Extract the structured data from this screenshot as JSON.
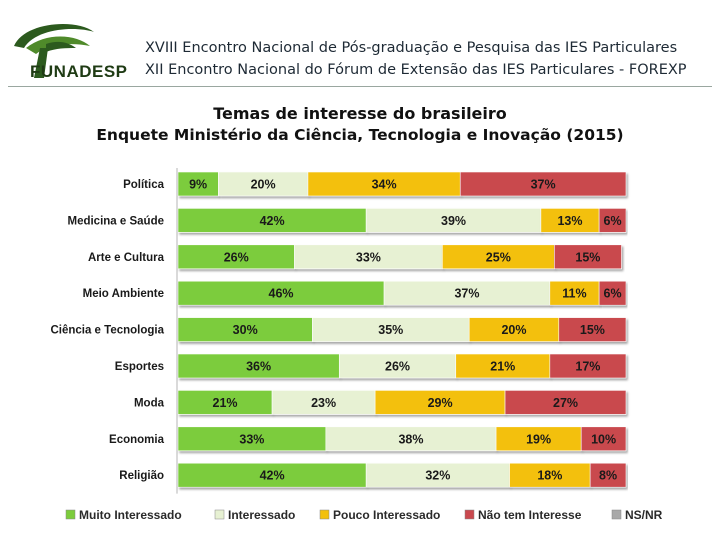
{
  "header": {
    "logo_text": "FUNADESP",
    "line1": "XVIII Encontro Nacional de Pós-graduação e Pesquisa das IES Particulares",
    "line2": "XII Encontro Nacional do Fórum de Extensão das IES Particulares - FOREXP"
  },
  "colors": {
    "muito": "#7ccc3c",
    "interessado": "#e7f1d3",
    "pouco": "#f3c00a",
    "nao": "#c9484e",
    "nsnr": "#a9a9a9"
  },
  "chart_data": {
    "type": "bar",
    "stacked": true,
    "orientation": "horizontal",
    "title": "Temas de interesse do brasileiro",
    "subtitle": "Enquete Ministério da Ciência, Tecnologia e Inovação (2015)",
    "categories": [
      "Política",
      "Medicina e Saúde",
      "Arte e Cultura",
      "Meio Ambiente",
      "Ciência e Tecnologia",
      "Esportes",
      "Moda",
      "Economia",
      "Religião"
    ],
    "series": [
      {
        "name": "Muito Interessado",
        "values": [
          9,
          42,
          26,
          46,
          30,
          36,
          21,
          33,
          42
        ]
      },
      {
        "name": "Interessado",
        "values": [
          20,
          39,
          33,
          37,
          35,
          26,
          23,
          38,
          32
        ]
      },
      {
        "name": "Pouco Interessado",
        "values": [
          34,
          13,
          25,
          11,
          20,
          21,
          29,
          19,
          18
        ]
      },
      {
        "name": "Não tem Interesse",
        "values": [
          37,
          6,
          15,
          6,
          15,
          17,
          27,
          10,
          8
        ]
      },
      {
        "name": "NS/NR",
        "values": [
          0,
          0,
          0,
          0,
          0,
          0,
          0,
          0,
          0
        ]
      }
    ],
    "value_suffix": "%",
    "xlim": [
      0,
      100
    ],
    "legend_position": "bottom"
  }
}
